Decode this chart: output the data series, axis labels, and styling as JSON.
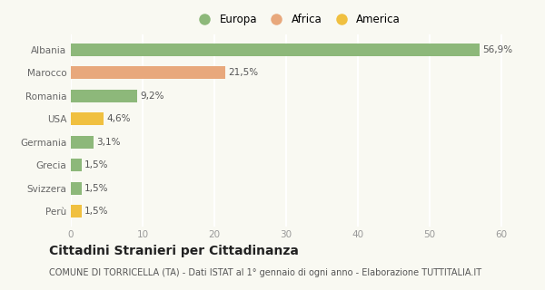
{
  "categories": [
    "Perù",
    "Svizzera",
    "Grecia",
    "Germania",
    "USA",
    "Romania",
    "Marocco",
    "Albania"
  ],
  "values": [
    1.5,
    1.5,
    1.5,
    3.1,
    4.6,
    9.2,
    21.5,
    56.9
  ],
  "colors": [
    "#f0c040",
    "#8db87a",
    "#8db87a",
    "#8db87a",
    "#f0c040",
    "#8db87a",
    "#e8a87c",
    "#8db87a"
  ],
  "legend_items": [
    {
      "label": "Europa",
      "color": "#8db87a"
    },
    {
      "label": "Africa",
      "color": "#e8a87c"
    },
    {
      "label": "America",
      "color": "#f0c040"
    }
  ],
  "xlabel_ticks": [
    0,
    10,
    20,
    30,
    40,
    50,
    60
  ],
  "xlim": [
    0,
    63
  ],
  "title": "Cittadini Stranieri per Cittadinanza",
  "subtitle": "COMUNE DI TORRICELLA (TA) - Dati ISTAT al 1° gennaio di ogni anno - Elaborazione TUTTITALIA.IT",
  "background_color": "#f9f9f2",
  "grid_color": "#ffffff",
  "bar_label_fontsize": 7.5,
  "title_fontsize": 10,
  "subtitle_fontsize": 7,
  "tick_fontsize": 7.5,
  "ytick_fontsize": 7.5,
  "bar_height": 0.55
}
